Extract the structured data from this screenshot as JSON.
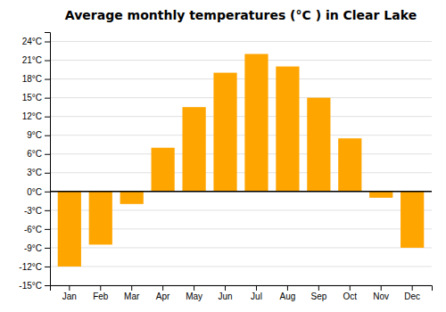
{
  "chart_data": {
    "type": "bar",
    "title": "Average monthly temperatures (°C ) in Clear Lake",
    "categories": [
      "Jan",
      "Feb",
      "Mar",
      "Apr",
      "May",
      "Jun",
      "Jul",
      "Aug",
      "Sep",
      "Oct",
      "Nov",
      "Dec"
    ],
    "values": [
      -12,
      -8.5,
      -2,
      7,
      13.5,
      19,
      22,
      20,
      15,
      8.5,
      -1,
      -9
    ],
    "color": "#FFA500",
    "ylim": [
      -15,
      25.5
    ],
    "yticks": [
      {
        "value": -15,
        "label": "-15°C"
      },
      {
        "value": -12,
        "label": "-12°C"
      },
      {
        "value": -9,
        "label": "-9°C"
      },
      {
        "value": -6,
        "label": "-6°C"
      },
      {
        "value": -3,
        "label": "-3°C"
      },
      {
        "value": 0,
        "label": "0°C"
      },
      {
        "value": 3,
        "label": "3°C"
      },
      {
        "value": 6,
        "label": "6°C"
      },
      {
        "value": 9,
        "label": "9°C"
      },
      {
        "value": 12,
        "label": "12°C"
      },
      {
        "value": 15,
        "label": "15°C"
      },
      {
        "value": 18,
        "label": "18°C"
      },
      {
        "value": 21,
        "label": "21°C"
      },
      {
        "value": 24,
        "label": "24°C"
      }
    ],
    "grid": true
  }
}
